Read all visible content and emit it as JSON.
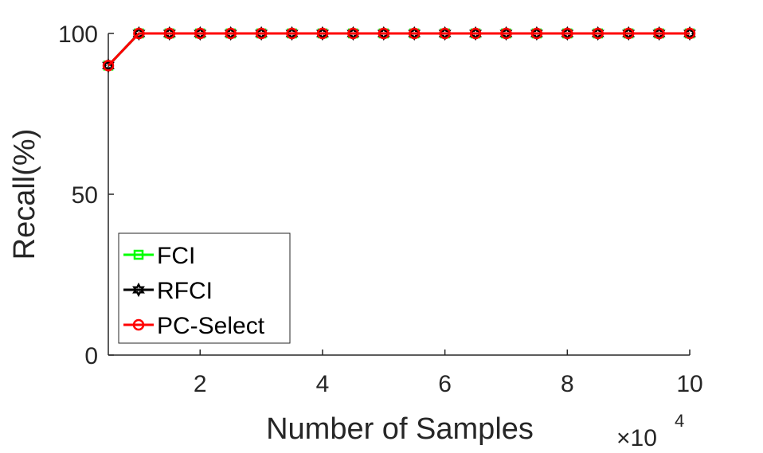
{
  "chart_data": {
    "type": "line",
    "title": "",
    "xlabel": "Number of Samples",
    "ylabel": "Recall(%)",
    "x_multiplier": "×10",
    "x_multiplier_exp": "4",
    "xlim": [
      0.5,
      10
    ],
    "ylim": [
      0,
      100
    ],
    "xticks": [
      2,
      4,
      6,
      8,
      10
    ],
    "yticks": [
      0,
      50,
      100
    ],
    "grid": false,
    "legend_position": "bottom-left",
    "x": [
      0.5,
      1,
      1.5,
      2,
      2.5,
      3,
      3.5,
      4,
      4.5,
      5,
      5.5,
      6,
      6.5,
      7,
      7.5,
      8,
      8.5,
      9,
      9.5,
      10
    ],
    "series": [
      {
        "name": "FCI",
        "color": "#00ff00",
        "marker": "square",
        "values": [
          90,
          100,
          100,
          100,
          100,
          100,
          100,
          100,
          100,
          100,
          100,
          100,
          100,
          100,
          100,
          100,
          100,
          100,
          100,
          100
        ]
      },
      {
        "name": "RFCI",
        "color": "#000000",
        "marker": "hexagram",
        "values": [
          90,
          100,
          100,
          100,
          100,
          100,
          100,
          100,
          100,
          100,
          100,
          100,
          100,
          100,
          100,
          100,
          100,
          100,
          100,
          100
        ]
      },
      {
        "name": "PC-Select",
        "color": "#ff0000",
        "marker": "circle",
        "values": [
          90,
          100,
          100,
          100,
          100,
          100,
          100,
          100,
          100,
          100,
          100,
          100,
          100,
          100,
          100,
          100,
          100,
          100,
          100,
          100
        ]
      }
    ]
  }
}
